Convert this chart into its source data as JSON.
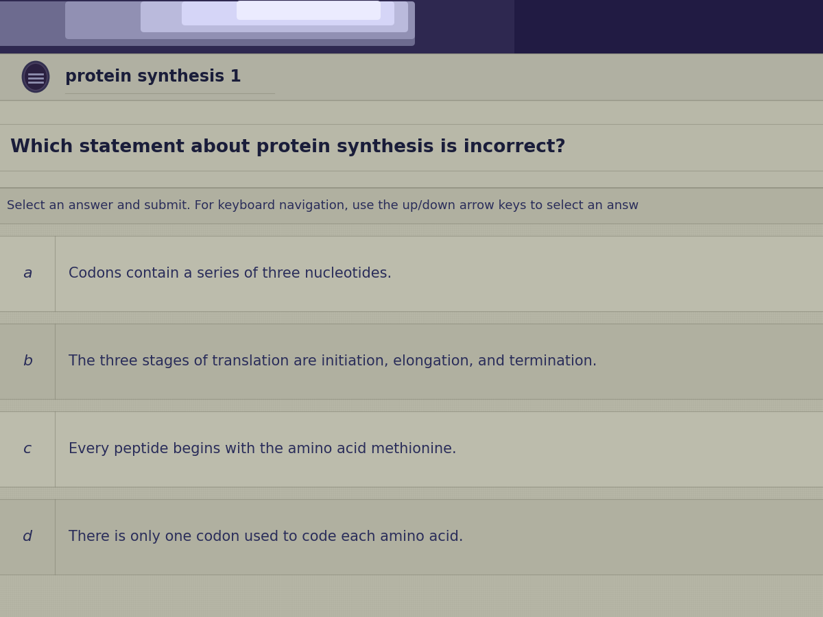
{
  "bg_color": "#b8b8a8",
  "panel_color": "#b0b0a0",
  "row_color_light": "#c0c0b0",
  "row_color_dark": "#a8a898",
  "border_color": "#888878",
  "text_color": "#2a2d5a",
  "header_text_color": "#1a1d3a",
  "title_text": "protein synthesis 1",
  "question_text": "Which statement about protein synthesis is incorrect?",
  "instruction_text": "Select an answer and submit. For keyboard navigation, use the up/down arrow keys to select an answ",
  "answers": [
    {
      "label": "a",
      "text": "Codons contain a series of three nucleotides."
    },
    {
      "label": "b",
      "text": "The three stages of translation are initiation, elongation, and termination."
    },
    {
      "label": "c",
      "text": "Every peptide begins with the amino acid methionine."
    },
    {
      "label": "d",
      "text": "There is only one codon used to code each amino acid."
    }
  ],
  "top_bar_color": "#3a3060",
  "icon_color": "#4a4060",
  "title_fontsize": 17,
  "question_fontsize": 19,
  "instruction_fontsize": 13,
  "answer_label_fontsize": 15,
  "answer_text_fontsize": 15,
  "grid_color": "#909080",
  "grid_alpha": 0.4
}
